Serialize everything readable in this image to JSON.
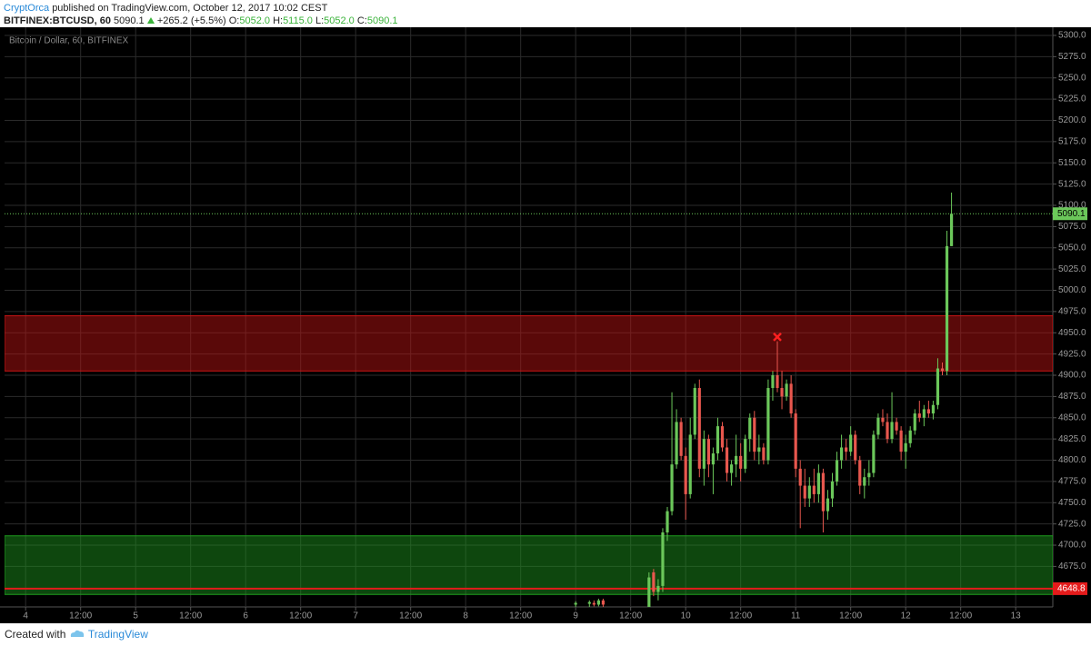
{
  "header": {
    "author": "CryptOrca",
    "published": "published on TradingView.com, October 12, 2017 10:02 CEST",
    "symbol": "BITFINEX:BTCUSD, 60",
    "last": "5090.1",
    "change": "+265.2 (+5.5%)",
    "o_label": "O:",
    "open": "5052.0",
    "h_label": "H:",
    "high": "5115.0",
    "l_label": "L:",
    "low": "5052.0",
    "c_label": "C:",
    "close": "5090.1"
  },
  "footer": {
    "created": "Created with",
    "brand": "TradingView"
  },
  "chart_data": {
    "type": "candlestick",
    "title": "Bitcoin / Dollar, 60, BITFINEX",
    "x": [
      120,
      123,
      124,
      125,
      126,
      136,
      137,
      138,
      139,
      140,
      141,
      142,
      143,
      144,
      145,
      146,
      147,
      148,
      149,
      150,
      151,
      152,
      153,
      154,
      155,
      156,
      157,
      158,
      159,
      160,
      161,
      162,
      163,
      164,
      165,
      166,
      167,
      168,
      169,
      170,
      171,
      172,
      173,
      174,
      175,
      176,
      177,
      178,
      179,
      180,
      181,
      182,
      183,
      184,
      185,
      186,
      187,
      188,
      189,
      190,
      191,
      192,
      193,
      194,
      195,
      196,
      197,
      198,
      199,
      200,
      201,
      202
    ],
    "open": [
      4630,
      4631,
      4632,
      4630,
      4635,
      4610,
      4668,
      4645,
      4652,
      4715,
      4740,
      4795,
      4845,
      4805,
      4760,
      4830,
      4885,
      4790,
      4825,
      4795,
      4808,
      4840,
      4815,
      4785,
      4795,
      4805,
      4790,
      4825,
      4850,
      4810,
      4815,
      4800,
      4885,
      4900,
      4885,
      4875,
      4890,
      4855,
      4790,
      4770,
      4755,
      4770,
      4760,
      4785,
      4740,
      4755,
      4775,
      4800,
      4815,
      4810,
      4830,
      4800,
      4770,
      4780,
      4785,
      4830,
      4850,
      4845,
      4825,
      4845,
      4835,
      4810,
      4820,
      4835,
      4855,
      4850,
      4860,
      4855,
      4865,
      4908,
      4905,
      5052
    ],
    "high": [
      4634,
      4635,
      4635,
      4637,
      4637,
      4668,
      4672,
      4660,
      4720,
      4745,
      4880,
      4860,
      4850,
      4815,
      4850,
      4890,
      4895,
      4835,
      4830,
      4815,
      4850,
      4845,
      4825,
      4800,
      4830,
      4820,
      4830,
      4855,
      4858,
      4830,
      4820,
      4895,
      4905,
      4940,
      4905,
      4895,
      4900,
      4860,
      4800,
      4790,
      4780,
      4790,
      4795,
      4790,
      4765,
      4785,
      4810,
      4830,
      4825,
      4840,
      4835,
      4805,
      4790,
      4800,
      4835,
      4855,
      4860,
      4855,
      4880,
      4850,
      4840,
      4830,
      4840,
      4860,
      4870,
      4865,
      4870,
      4870,
      4920,
      4915,
      5070,
      5115
    ],
    "low": [
      4622,
      4625,
      4628,
      4628,
      4626,
      4590,
      4640,
      4635,
      4645,
      4705,
      4735,
      4790,
      4800,
      4730,
      4755,
      4825,
      4780,
      4770,
      4780,
      4760,
      4800,
      4810,
      4775,
      4770,
      4780,
      4775,
      4785,
      4810,
      4800,
      4795,
      4795,
      4795,
      4870,
      4880,
      4860,
      4870,
      4850,
      4780,
      4720,
      4745,
      4745,
      4750,
      4750,
      4715,
      4730,
      4745,
      4770,
      4790,
      4800,
      4805,
      4795,
      4760,
      4755,
      4770,
      4780,
      4825,
      4840,
      4820,
      4820,
      4830,
      4800,
      4790,
      4815,
      4830,
      4845,
      4840,
      4850,
      4848,
      4860,
      4900,
      4900,
      5052
    ],
    "close": [
      4632,
      4633,
      4630,
      4635,
      4630,
      4662,
      4645,
      4652,
      4715,
      4740,
      4795,
      4845,
      4805,
      4760,
      4830,
      4885,
      4790,
      4825,
      4795,
      4808,
      4840,
      4815,
      4785,
      4795,
      4805,
      4790,
      4825,
      4850,
      4810,
      4815,
      4800,
      4885,
      4900,
      4885,
      4875,
      4890,
      4855,
      4790,
      4770,
      4755,
      4770,
      4760,
      4785,
      4740,
      4755,
      4775,
      4800,
      4815,
      4810,
      4830,
      4800,
      4770,
      4780,
      4785,
      4830,
      4850,
      4845,
      4825,
      4845,
      4835,
      4810,
      4820,
      4835,
      4855,
      4850,
      4860,
      4855,
      4865,
      4908,
      4905,
      5052,
      5090.1
    ],
    "up_color": "#6bc75a",
    "down_color": "#e8574e",
    "grid": true,
    "grid_color": "#2b2b2b",
    "xlim": [
      -4.6,
      224.1
    ],
    "ylim": [
      4627.3,
      5309.6
    ],
    "xticks": [
      {
        "value": 0,
        "label": "4"
      },
      {
        "value": 12,
        "label": "12:00"
      },
      {
        "value": 24,
        "label": "5"
      },
      {
        "value": 36,
        "label": "12:00"
      },
      {
        "value": 48,
        "label": "6"
      },
      {
        "value": 60,
        "label": "12:00"
      },
      {
        "value": 72,
        "label": "7"
      },
      {
        "value": 84,
        "label": "12:00"
      },
      {
        "value": 96,
        "label": "8"
      },
      {
        "value": 108,
        "label": "12:00"
      },
      {
        "value": 120,
        "label": "9"
      },
      {
        "value": 132,
        "label": "12:00"
      },
      {
        "value": 144,
        "label": "10"
      },
      {
        "value": 156,
        "label": "12:00"
      },
      {
        "value": 168,
        "label": "11"
      },
      {
        "value": 180,
        "label": "12:00"
      },
      {
        "value": 192,
        "label": "12"
      },
      {
        "value": 204,
        "label": "12:00"
      },
      {
        "value": 216,
        "label": "13"
      }
    ],
    "yticks": [
      {
        "value": 4675,
        "label": "4675.0"
      },
      {
        "value": 4700,
        "label": "4700.0"
      },
      {
        "value": 4725,
        "label": "4725.0"
      },
      {
        "value": 4750,
        "label": "4750.0"
      },
      {
        "value": 4775,
        "label": "4775.0"
      },
      {
        "value": 4800,
        "label": "4800.0"
      },
      {
        "value": 4825,
        "label": "4825.0"
      },
      {
        "value": 4850,
        "label": "4850.0"
      },
      {
        "value": 4875,
        "label": "4875.0"
      },
      {
        "value": 4900,
        "label": "4900.0"
      },
      {
        "value": 4925,
        "label": "4925.0"
      },
      {
        "value": 4950,
        "label": "4950.0"
      },
      {
        "value": 4975,
        "label": "4975.0"
      },
      {
        "value": 5000,
        "label": "5000.0"
      },
      {
        "value": 5025,
        "label": "5025.0"
      },
      {
        "value": 5050,
        "label": "5050.0"
      },
      {
        "value": 5075,
        "label": "5075.0"
      },
      {
        "value": 5100,
        "label": "5100.0"
      },
      {
        "value": 5125,
        "label": "5125.0"
      },
      {
        "value": 5150,
        "label": "5150.0"
      },
      {
        "value": 5175,
        "label": "5175.0"
      },
      {
        "value": 5200,
        "label": "5200.0"
      },
      {
        "value": 5225,
        "label": "5225.0"
      },
      {
        "value": 5250,
        "label": "5250.0"
      },
      {
        "value": 5275,
        "label": "5275.0"
      },
      {
        "value": 5300,
        "label": "5300.0"
      }
    ],
    "zones": [
      {
        "from": 4905,
        "to": 4970,
        "color": "#c81414"
      },
      {
        "from": 4642,
        "to": 4711,
        "color": "#1e9e1e"
      }
    ],
    "levels": [
      {
        "value": 4648.8,
        "color": "#e41b1b"
      }
    ],
    "price_line": {
      "value": 5090.1,
      "color": "#6bc75a"
    },
    "marker": {
      "x": 164,
      "y": 4945,
      "color": "#ff2020"
    }
  }
}
